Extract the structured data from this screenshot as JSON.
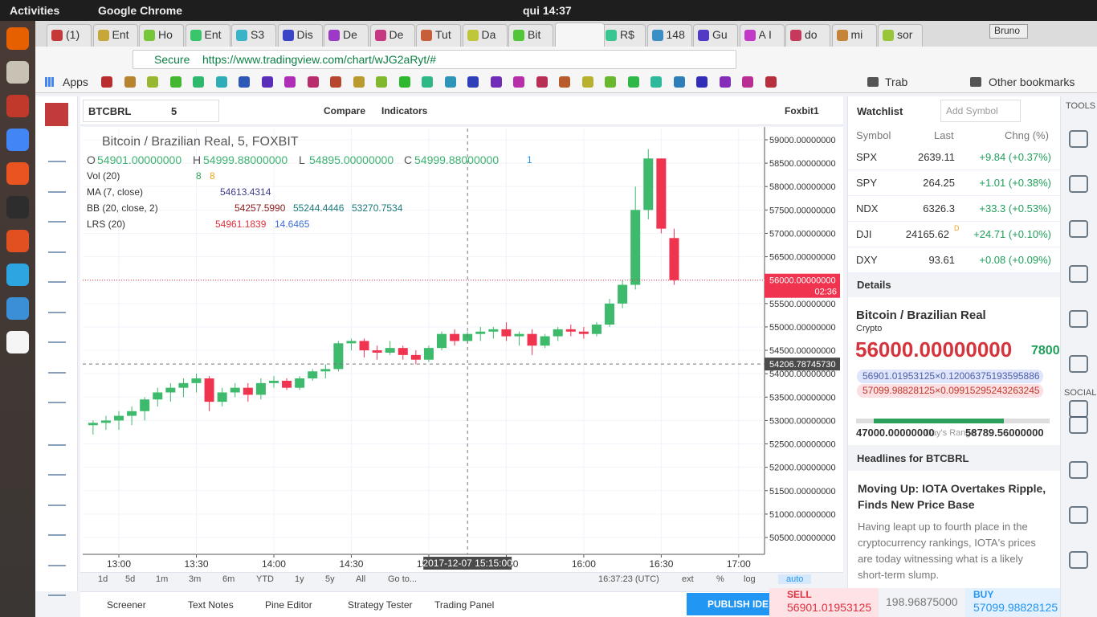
{
  "system_bar": {
    "activities": "Activities",
    "app": "Google Chrome",
    "clock": "qui 14:37"
  },
  "browser": {
    "tabs": [
      "(1)",
      "Ent",
      "Ho",
      "Ent",
      "S3",
      "Dis",
      "De",
      "De",
      "Tut",
      "Da",
      "Bit",
      "R$",
      "148",
      "Gu",
      "A I",
      "do",
      "mi",
      "sor"
    ],
    "profile": "Bruno",
    "secure": "Secure",
    "url": "https://www.tradingview.com/chart/wJG2aRyt/#",
    "bookmarks": {
      "apps": "Apps",
      "folder": "Trab",
      "other": "Other bookmarks"
    }
  },
  "toolbar": {
    "symbol": "BTCBRL",
    "interval": "5",
    "compare": "Compare",
    "indicators": "Indicators",
    "layout": "Foxbit1"
  },
  "legend": {
    "title": "Bitcoin / Brazilian Real, 5, FOXBIT",
    "ohlc": [
      {
        "label": "O",
        "value": "54901.00000000"
      },
      {
        "label": "H",
        "value": "54999.88000000"
      },
      {
        "label": "L",
        "value": "54895.00000000"
      },
      {
        "label": "C",
        "value": "54999.88000000"
      }
    ],
    "alerts": "1",
    "studies": [
      {
        "name": "Vol (20)",
        "values": [
          "8",
          "8"
        ],
        "colors": [
          "#2e9e4f",
          "#f0a020"
        ]
      },
      {
        "name": "MA (7, close)",
        "values": [
          "54613.4314"
        ],
        "colors": [
          "#3c3c8c"
        ]
      },
      {
        "name": "BB (20, close, 2)",
        "values": [
          "54257.5990",
          "55244.4446",
          "53270.7534"
        ],
        "colors": [
          "#8b1a1a",
          "#1a7a7a",
          "#1a7a7a"
        ]
      },
      {
        "name": "LRS (20)",
        "values": [
          "54961.1839",
          "14.6465"
        ],
        "colors": [
          "#e0303f",
          "#3c6fd6"
        ]
      }
    ]
  },
  "chart_data": {
    "type": "candlestick",
    "x": [
      "12:50",
      "12:55",
      "13:00",
      "13:05",
      "13:10",
      "13:15",
      "13:20",
      "13:25",
      "13:30",
      "13:35",
      "13:40",
      "13:45",
      "13:50",
      "13:55",
      "14:00",
      "14:05",
      "14:10",
      "14:15",
      "14:20",
      "14:25",
      "14:30",
      "14:35",
      "14:40",
      "14:45",
      "14:50",
      "14:55",
      "15:00",
      "15:05",
      "15:10",
      "15:15",
      "15:20",
      "15:25",
      "15:30",
      "15:35",
      "15:40",
      "15:45",
      "15:50",
      "15:55",
      "16:00",
      "16:05",
      "16:10",
      "16:15",
      "16:20",
      "16:25",
      "16:30",
      "16:35"
    ],
    "open": [
      52900,
      52950,
      53000,
      53100,
      53200,
      53450,
      53600,
      53700,
      53800,
      53900,
      53400,
      53600,
      53700,
      53550,
      53800,
      53850,
      53700,
      53900,
      54050,
      54100,
      54650,
      54700,
      54500,
      54450,
      54550,
      54400,
      54300,
      54550,
      54850,
      54700,
      54850,
      54900,
      54950,
      54800,
      54850,
      54600,
      54800,
      54950,
      54900,
      54850,
      55050,
      55500,
      55900,
      57500,
      58600,
      56900
    ],
    "high": [
      53000,
      53100,
      53200,
      53300,
      53500,
      53700,
      53800,
      53900,
      54000,
      53950,
      53700,
      53800,
      53800,
      53900,
      53950,
      53900,
      53950,
      54100,
      54200,
      54700,
      54750,
      54750,
      54600,
      54700,
      54600,
      54500,
      54600,
      54900,
      54950,
      54900,
      55000,
      55000,
      55100,
      54900,
      54950,
      54850,
      55000,
      55050,
      55000,
      55100,
      55600,
      56000,
      58000,
      58800,
      58600,
      57100
    ],
    "low": [
      52700,
      52800,
      52800,
      52900,
      53000,
      53300,
      53400,
      53500,
      53600,
      53200,
      53300,
      53500,
      53400,
      53450,
      53700,
      53650,
      53650,
      53850,
      53900,
      54050,
      54500,
      54350,
      54300,
      54400,
      54300,
      54200,
      54250,
      54500,
      54600,
      54650,
      54700,
      54750,
      54700,
      54600,
      54400,
      54550,
      54700,
      54800,
      54750,
      54800,
      55000,
      55400,
      55800,
      57300,
      57000,
      55900
    ],
    "close": [
      52950,
      53000,
      53100,
      53200,
      53450,
      53600,
      53700,
      53800,
      53900,
      53400,
      53600,
      53700,
      53550,
      53800,
      53850,
      53700,
      53900,
      54050,
      54100,
      54650,
      54700,
      54500,
      54450,
      54550,
      54400,
      54300,
      54550,
      54850,
      54700,
      54850,
      54900,
      54950,
      54800,
      54850,
      54600,
      54800,
      54950,
      54900,
      54850,
      55050,
      55500,
      55900,
      57500,
      58600,
      57100,
      56000
    ],
    "colors": {
      "up": "#3dba6b",
      "down": "#f0334f"
    },
    "xlim": [
      "12:46",
      "17:10"
    ],
    "xticks": [
      "13:00",
      "13:30",
      "14:00",
      "14:30",
      "15:00",
      "15:30",
      "16:00",
      "16:30",
      "17:00"
    ],
    "ylim": [
      50140,
      59240
    ],
    "yticks": [
      {
        "value": 50500,
        "label": "50500.00000000"
      },
      {
        "value": 51000,
        "label": "51000.00000000"
      },
      {
        "value": 51500,
        "label": "51500.00000000"
      },
      {
        "value": 52000,
        "label": "52000.00000000"
      },
      {
        "value": 52500,
        "label": "52500.00000000"
      },
      {
        "value": 53000,
        "label": "53000.00000000"
      },
      {
        "value": 53500,
        "label": "53500.00000000"
      },
      {
        "value": 54000,
        "label": "54000.00000000"
      },
      {
        "value": 54500,
        "label": "54500.00000000"
      },
      {
        "value": 55000,
        "label": "55000.00000000"
      },
      {
        "value": 55500,
        "label": "55500.00000000"
      },
      {
        "value": 56000,
        "label": "56000.00000000"
      },
      {
        "value": 56500,
        "label": "56500.00000000"
      },
      {
        "value": 57000,
        "label": "57000.00000000"
      },
      {
        "value": 57500,
        "label": "57500.00000000"
      },
      {
        "value": 58000,
        "label": "58000.00000000"
      },
      {
        "value": 58500,
        "label": "58500.00000000"
      },
      {
        "value": 59000,
        "label": "59000.00000000"
      }
    ],
    "grid": true,
    "last_price": {
      "value": 56000,
      "label": "56000.00000000",
      "countdown": "02:36"
    },
    "crosshair": {
      "value": 54206.7874573,
      "label": "54206.78745730",
      "time": "2017-12-07 15:15:00"
    }
  },
  "bottom_bar": {
    "ranges": [
      "1d",
      "5d",
      "1m",
      "3m",
      "6m",
      "YTD",
      "1y",
      "5y",
      "All",
      "Go to..."
    ],
    "time": "16:37:23 (UTC)",
    "options": [
      "ext",
      "%",
      "log",
      "auto"
    ]
  },
  "bottom_tabs": {
    "tabs": [
      "Screener",
      "Text Notes",
      "Pine Editor",
      "Strategy Tester",
      "Trading Panel"
    ],
    "publish": "PUBLISH IDE",
    "sell_label": "SELL",
    "sell": "56901.01953125",
    "spread": "198.96875000",
    "buy_label": "BUY",
    "buy": "57099.98828125"
  },
  "watchlist": {
    "title": "Watchlist",
    "add": "Add Symbol",
    "columns": [
      "Symbol",
      "Last",
      "Chng (%)"
    ],
    "rows": [
      [
        "SPX",
        "2639.11",
        "+9.84 (+0.37%)"
      ],
      [
        "SPY",
        "264.25",
        "+1.01 (+0.38%)"
      ],
      [
        "NDX",
        "6326.3",
        "+33.3 (+0.53%)"
      ],
      [
        "DJI",
        "24165.62",
        "+24.71 (+0.10%)"
      ],
      [
        "DXY",
        "93.61",
        "+0.08 (+0.09%)"
      ]
    ],
    "flag": "D"
  },
  "details": {
    "title": "Details",
    "name": "Bitcoin / Brazilian Real",
    "kind": "Crypto",
    "price": "56000.00000000",
    "change": "7800",
    "bid": "56901.01953125×0.12006375193595886",
    "ask": "57099.98828125×0.09915295243263245",
    "range_low": "47000.00000000",
    "range_high": "58789.56000000",
    "range_label": "Day's Range"
  },
  "headlines": {
    "title": "Headlines for BTCBRL",
    "headline": "Moving Up: IOTA Overtakes Ripple, Finds New Price Base",
    "body": "Having leapt up to fourth place in the cryptocurrency rankings, IOTA's prices are today witnessing what is a likely short-term slump."
  },
  "sidebar": {
    "tools": "TOOLS",
    "social": "SOCIAL"
  }
}
